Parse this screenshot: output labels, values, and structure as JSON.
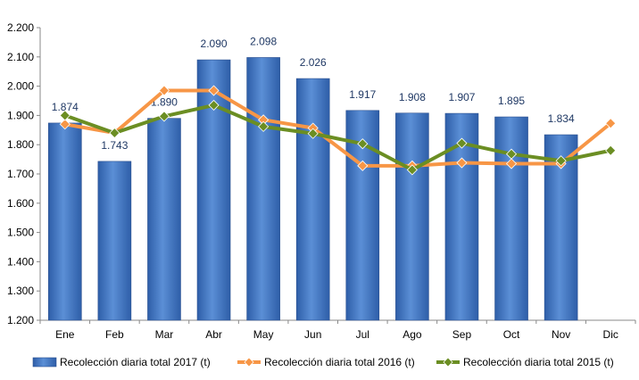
{
  "chart_data": {
    "type": "bar",
    "categories": [
      "Ene",
      "Feb",
      "Mar",
      "Abr",
      "May",
      "Jun",
      "Jul",
      "Ago",
      "Sep",
      "Oct",
      "Nov",
      "Dic"
    ],
    "ylim": [
      1200,
      2200
    ],
    "yticks": [
      1200,
      1300,
      1400,
      1500,
      1600,
      1700,
      1800,
      1900,
      2000,
      2100,
      2200
    ],
    "ytick_labels": [
      "1.200",
      "1.300",
      "1.400",
      "1.500",
      "1.600",
      "1.700",
      "1.800",
      "1.900",
      "2.000",
      "2.100",
      "2.200"
    ],
    "grid": false,
    "legend_position": "bottom",
    "series": [
      {
        "name": "Recolección diaria total 2017 (t)",
        "type": "bar",
        "color": "#4472c4",
        "values": [
          1874,
          1743,
          1890,
          2090,
          2098,
          2026,
          1917,
          1908,
          1907,
          1895,
          1834,
          null
        ],
        "labels": [
          "1.874",
          "1.743",
          "1.890",
          "2.090",
          "2.098",
          "2.026",
          "1.917",
          "1.908",
          "1.907",
          "1.895",
          "1.834",
          ""
        ]
      },
      {
        "name": "Recolección diaria total 2016 (t)",
        "type": "line",
        "color": "#f79646",
        "values": [
          1870,
          1840,
          1985,
          1985,
          1885,
          1857,
          1728,
          1728,
          1738,
          1735,
          1735,
          1873
        ]
      },
      {
        "name": "Recolección diaria total 2015 (t)",
        "type": "line",
        "color": "#6b8e23",
        "values": [
          1900,
          1840,
          1897,
          1935,
          1862,
          1838,
          1803,
          1714,
          1805,
          1768,
          1745,
          1780
        ]
      }
    ]
  }
}
